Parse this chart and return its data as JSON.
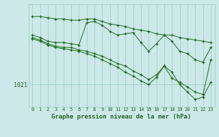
{
  "bg_color": "#cce8e8",
  "grid_color": "#99ccbb",
  "line_color": "#1a6b1a",
  "marker_color": "#1a6b1a",
  "title": "Graphe pression niveau de la mer (hPa)",
  "xlabel_ticks": [
    0,
    1,
    2,
    3,
    4,
    5,
    6,
    7,
    8,
    9,
    10,
    11,
    12,
    13,
    14,
    15,
    16,
    17,
    18,
    19,
    20,
    21,
    22,
    23
  ],
  "ylim": [
    1019.2,
    1027.5
  ],
  "xlim": [
    -0.5,
    23.5
  ],
  "ytick_pos": 1021,
  "series": [
    [
      1026.5,
      1026.5,
      1026.4,
      1026.3,
      1026.3,
      1026.2,
      1026.2,
      1026.3,
      1026.3,
      1026.1,
      1025.9,
      1025.8,
      1025.7,
      1025.5,
      1025.4,
      1025.3,
      1025.1,
      1025.0,
      1025.0,
      1024.8,
      1024.7,
      1024.6,
      1024.5,
      1024.4
    ],
    [
      1025.0,
      1024.8,
      1024.5,
      1024.4,
      1024.4,
      1024.3,
      1024.2,
      1026.0,
      1026.1,
      1025.8,
      1025.3,
      1025.0,
      1025.1,
      1025.2,
      1024.4,
      1023.7,
      1024.3,
      1025.0,
      1024.5,
      1023.7,
      1023.5,
      1023.0,
      1022.8,
      1024.0
    ],
    [
      1024.8,
      1024.6,
      1024.3,
      1024.1,
      1024.0,
      1024.0,
      1023.8,
      1023.7,
      1023.5,
      1023.3,
      1023.0,
      1022.7,
      1022.5,
      1022.1,
      1021.8,
      1021.4,
      1021.8,
      1022.5,
      1021.5,
      1021.2,
      1020.8,
      1020.4,
      1020.2,
      1023.0
    ],
    [
      1024.7,
      1024.5,
      1024.2,
      1024.0,
      1023.9,
      1023.8,
      1023.7,
      1023.5,
      1023.3,
      1023.0,
      1022.7,
      1022.4,
      1022.0,
      1021.7,
      1021.3,
      1021.0,
      1021.6,
      1022.5,
      1022.0,
      1021.0,
      1020.4,
      1019.8,
      1020.0,
      1021.2
    ]
  ]
}
